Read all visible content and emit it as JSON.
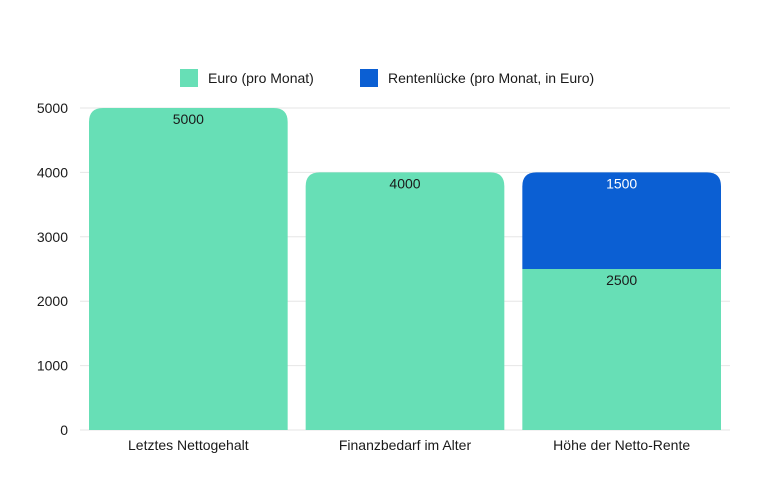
{
  "chart_data": {
    "type": "bar",
    "stacked": true,
    "categories": [
      "Letztes Nettogehalt",
      "Finanzbedarf im Alter",
      "Höhe der Netto-Rente"
    ],
    "series": [
      {
        "name": "Euro (pro Monat)",
        "values": [
          5000,
          4000,
          2500
        ],
        "color": "#67dfb6",
        "label_color": "#1a1a1a"
      },
      {
        "name": "Rentenlücke (pro Monat, in Euro)",
        "values": [
          0,
          0,
          1500
        ],
        "color": "#0b5fd3",
        "label_color": "#ffffff"
      }
    ],
    "data_labels": [
      [
        "5000",
        "4000",
        "2500"
      ],
      [
        "",
        "",
        "1500"
      ]
    ],
    "y_ticks": [
      "0",
      "1000",
      "2000",
      "3000",
      "4000",
      "5000"
    ],
    "ylim": [
      0,
      5000
    ],
    "grid": true,
    "legend_position": "top-center",
    "title": "",
    "xlabel": "",
    "ylabel": ""
  }
}
